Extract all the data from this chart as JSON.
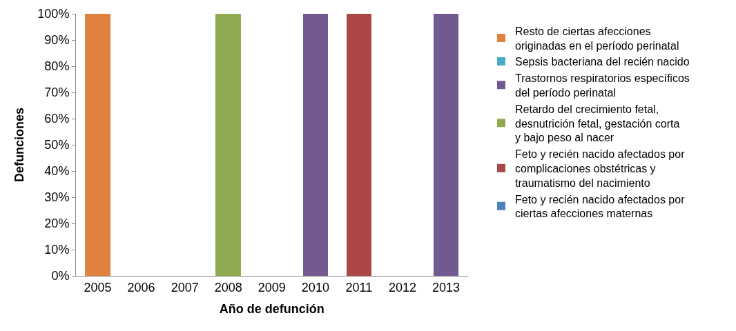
{
  "chart_data": {
    "type": "bar",
    "stacked": true,
    "xlabel": "Año de defunción",
    "ylabel": "Defunciones",
    "categories": [
      "2005",
      "2006",
      "2007",
      "2008",
      "2009",
      "2010",
      "2011",
      "2012",
      "2013"
    ],
    "series": [
      {
        "name": "Feto y recién nacido afectados por ciertas afecciones maternas",
        "color": "#4f81bd",
        "values": [
          0,
          0,
          0,
          0,
          0,
          0,
          0,
          0,
          0
        ]
      },
      {
        "name": "Feto y recién nacido afectados por complicaciones obstétricas y traumatismo del nacimiento",
        "color": "#ab4745",
        "values": [
          0,
          0,
          0,
          0,
          0,
          0,
          100,
          0,
          0
        ]
      },
      {
        "name": "Retardo del crecimiento fetal, desnutrición fetal, gestación corta y bajo peso al nacer",
        "color": "#8faa4f",
        "values": [
          0,
          0,
          0,
          100,
          0,
          0,
          0,
          0,
          0
        ]
      },
      {
        "name": "Trastornos respiratorios específicos del período perinatal",
        "color": "#725a91",
        "values": [
          0,
          0,
          0,
          0,
          0,
          100,
          0,
          0,
          100
        ]
      },
      {
        "name": "Sepsis bacteriana del recién nacido",
        "color": "#4bacc6",
        "values": [
          0,
          0,
          0,
          0,
          0,
          0,
          0,
          0,
          0
        ]
      },
      {
        "name": "Resto de ciertas afecciones originadas en el período perinatal",
        "color": "#e0823d",
        "values": [
          100,
          0,
          0,
          0,
          0,
          0,
          0,
          0,
          0
        ]
      }
    ],
    "ylim": [
      0,
      100
    ],
    "yticks": [
      {
        "value": 0,
        "label": "0%"
      },
      {
        "value": 10,
        "label": "10%"
      },
      {
        "value": 20,
        "label": "20%"
      },
      {
        "value": 30,
        "label": "30%"
      },
      {
        "value": 40,
        "label": "40%"
      },
      {
        "value": 50,
        "label": "50%"
      },
      {
        "value": 60,
        "label": "60%"
      },
      {
        "value": 70,
        "label": "70%"
      },
      {
        "value": 80,
        "label": "80%"
      },
      {
        "value": 90,
        "label": "90%"
      },
      {
        "value": 100,
        "label": "100%"
      }
    ],
    "legend": "right"
  }
}
